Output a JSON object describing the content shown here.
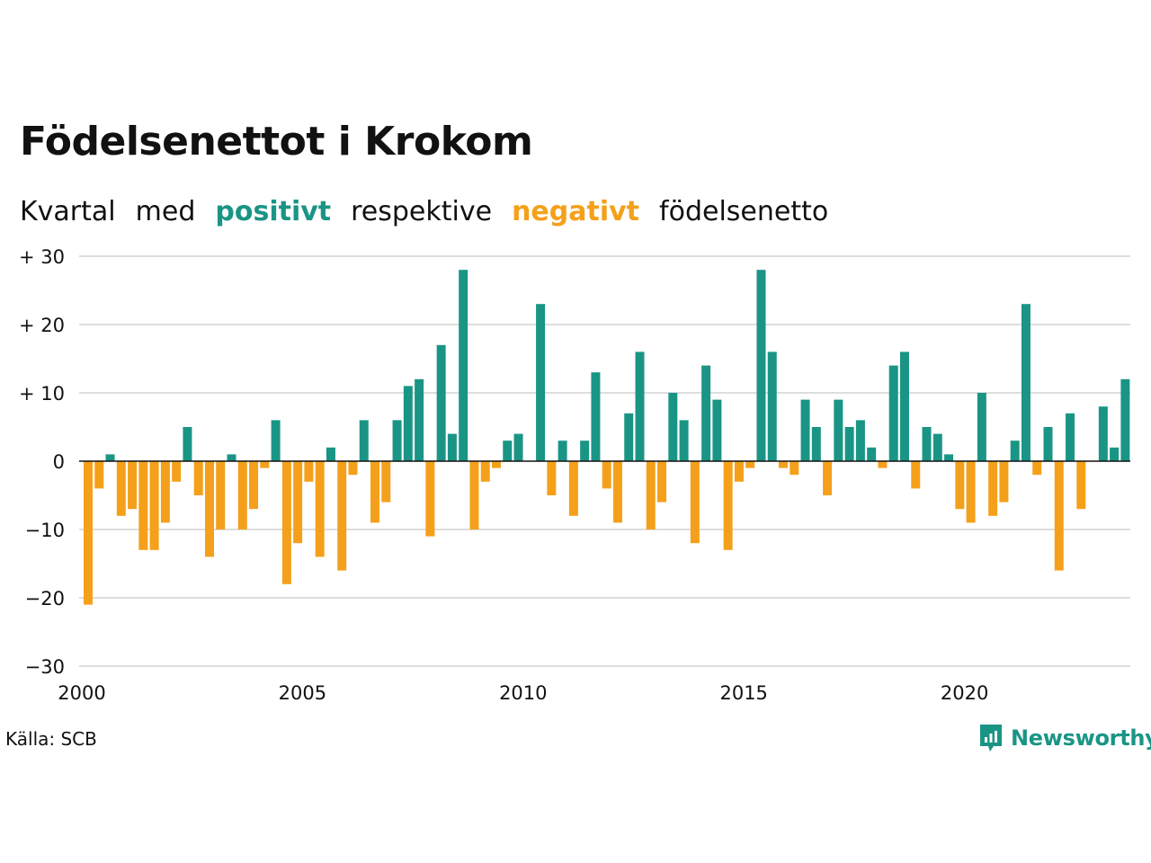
{
  "title": "Födelsenettot i Krokom",
  "subtitle": {
    "w1": "Kvartal",
    "w2": "med",
    "positive": "positivt",
    "w3": "respektive",
    "negative": "negativt",
    "w4": "födelsenetto"
  },
  "source": "Källa: SCB",
  "logo_text": "Newsworthy",
  "colors": {
    "positive": "#1a9585",
    "negative": "#f5a01a",
    "grid": "#dddddd",
    "zero": "#111111"
  },
  "chart_data": {
    "type": "bar",
    "title": "Födelsenettot i Krokom",
    "xlabel": "",
    "ylabel": "",
    "ylim": [
      -30,
      30
    ],
    "yticks": [
      30,
      20,
      10,
      0,
      -10,
      -20,
      -30
    ],
    "ytick_labels": [
      "+ 30",
      "+ 20",
      "+ 10",
      "0",
      "−10",
      "−20",
      "−30"
    ],
    "xticks": [
      "2000",
      "2005",
      "2010",
      "2015",
      "2020"
    ],
    "grid": true,
    "start_year": 2000,
    "values": [
      -21,
      -4,
      1,
      -8,
      -7,
      -13,
      -13,
      -9,
      -3,
      5,
      -5,
      -14,
      -10,
      1,
      -10,
      -7,
      -1,
      6,
      -18,
      -12,
      -3,
      -14,
      2,
      -16,
      -2,
      6,
      -9,
      -6,
      6,
      11,
      12,
      -11,
      17,
      4,
      28,
      -10,
      -3,
      -1,
      3,
      4,
      0,
      23,
      -5,
      3,
      -8,
      3,
      13,
      -4,
      -9,
      7,
      16,
      -10,
      -6,
      10,
      6,
      -12,
      14,
      9,
      -13,
      -3,
      -1,
      28,
      16,
      -1,
      -2,
      9,
      5,
      -5,
      9,
      5,
      6,
      2,
      -1,
      14,
      16,
      -4,
      5,
      4,
      1,
      -7,
      -9,
      10,
      -8,
      -6,
      3,
      23,
      -2,
      5,
      -16,
      7,
      -7,
      0,
      8,
      2,
      12
    ]
  }
}
